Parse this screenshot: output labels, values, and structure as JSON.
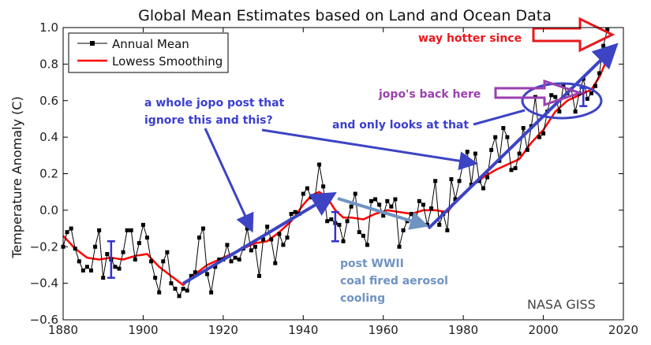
{
  "chart_data": {
    "type": "line",
    "title": "Global Mean Estimates based on Land and Ocean Data",
    "xlabel": "",
    "ylabel": "Temperature Anomaly (C)",
    "xlim": [
      1880,
      2020
    ],
    "ylim": [
      -0.6,
      1.0
    ],
    "xticks": [
      1880,
      1900,
      1920,
      1940,
      1960,
      1980,
      2000,
      2020
    ],
    "yticks": [
      -0.6,
      -0.4,
      -0.2,
      0.0,
      0.2,
      0.4,
      0.6,
      0.8,
      1.0
    ],
    "xtick_labels": [
      "1880",
      "1900",
      "1920",
      "1940",
      "1960",
      "1980",
      "2000",
      "2020"
    ],
    "ytick_labels": [
      "−0.6",
      "−0.4",
      "−0.2",
      "0.0",
      "0.2",
      "0.4",
      "0.6",
      "0.8",
      "1.0"
    ],
    "legend_position": "top-left",
    "grid": false,
    "series": [
      {
        "name": "Annual Mean",
        "color": "#000000",
        "marker": "square",
        "x": [
          1880,
          1881,
          1882,
          1883,
          1884,
          1885,
          1886,
          1887,
          1888,
          1889,
          1890,
          1891,
          1892,
          1893,
          1894,
          1895,
          1896,
          1897,
          1898,
          1899,
          1900,
          1901,
          1902,
          1903,
          1904,
          1905,
          1906,
          1907,
          1908,
          1909,
          1910,
          1911,
          1912,
          1913,
          1914,
          1915,
          1916,
          1917,
          1918,
          1919,
          1920,
          1921,
          1922,
          1923,
          1924,
          1925,
          1926,
          1927,
          1928,
          1929,
          1930,
          1931,
          1932,
          1933,
          1934,
          1935,
          1936,
          1937,
          1938,
          1939,
          1940,
          1941,
          1942,
          1943,
          1944,
          1945,
          1946,
          1947,
          1948,
          1949,
          1950,
          1951,
          1952,
          1953,
          1954,
          1955,
          1956,
          1957,
          1958,
          1959,
          1960,
          1961,
          1962,
          1963,
          1964,
          1965,
          1966,
          1967,
          1968,
          1969,
          1970,
          1971,
          1972,
          1973,
          1974,
          1975,
          1976,
          1977,
          1978,
          1979,
          1980,
          1981,
          1982,
          1983,
          1984,
          1985,
          1986,
          1987,
          1988,
          1989,
          1990,
          1991,
          1992,
          1993,
          1994,
          1995,
          1996,
          1997,
          1998,
          1999,
          2000,
          2001,
          2002,
          2003,
          2004,
          2005,
          2006,
          2007,
          2008,
          2009,
          2010,
          2011,
          2012,
          2013,
          2014,
          2015,
          2016
        ],
        "values": [
          -0.2,
          -0.12,
          -0.1,
          -0.21,
          -0.28,
          -0.33,
          -0.31,
          -0.33,
          -0.2,
          -0.11,
          -0.37,
          -0.24,
          -0.27,
          -0.31,
          -0.32,
          -0.23,
          -0.11,
          -0.11,
          -0.27,
          -0.18,
          -0.08,
          -0.15,
          -0.28,
          -0.37,
          -0.45,
          -0.28,
          -0.23,
          -0.4,
          -0.43,
          -0.47,
          -0.43,
          -0.44,
          -0.36,
          -0.34,
          -0.15,
          -0.1,
          -0.35,
          -0.45,
          -0.31,
          -0.27,
          -0.27,
          -0.19,
          -0.28,
          -0.26,
          -0.27,
          -0.21,
          -0.1,
          -0.22,
          -0.2,
          -0.36,
          -0.16,
          -0.09,
          -0.16,
          -0.29,
          -0.13,
          -0.19,
          -0.15,
          -0.02,
          -0.01,
          -0.02,
          0.09,
          0.12,
          0.07,
          0.08,
          0.25,
          0.13,
          -0.06,
          -0.05,
          -0.07,
          -0.08,
          -0.17,
          -0.06,
          0.02,
          0.09,
          -0.12,
          -0.14,
          -0.19,
          0.05,
          0.06,
          0.03,
          -0.03,
          0.05,
          0.02,
          0.06,
          -0.2,
          -0.11,
          -0.06,
          -0.02,
          -0.08,
          0.05,
          0.03,
          -0.08,
          0.01,
          0.16,
          -0.08,
          -0.02,
          -0.11,
          0.17,
          0.06,
          0.16,
          0.26,
          0.32,
          0.14,
          0.31,
          0.16,
          0.12,
          0.18,
          0.33,
          0.4,
          0.27,
          0.45,
          0.4,
          0.22,
          0.23,
          0.31,
          0.45,
          0.33,
          0.46,
          0.62,
          0.4,
          0.42,
          0.54,
          0.63,
          0.62,
          0.54,
          0.68,
          0.64,
          0.66,
          0.54,
          0.64,
          0.72,
          0.61,
          0.64,
          0.68,
          0.75,
          0.9,
          0.99
        ]
      },
      {
        "name": "Lowess Smoothing",
        "color": "#ff0000",
        "x": [
          1880,
          1883,
          1886,
          1889,
          1892,
          1895,
          1898,
          1901,
          1904,
          1907,
          1910,
          1913,
          1916,
          1919,
          1922,
          1925,
          1928,
          1931,
          1934,
          1937,
          1940,
          1942,
          1944,
          1946,
          1948,
          1950,
          1952,
          1955,
          1958,
          1961,
          1964,
          1967,
          1970,
          1973,
          1976,
          1979,
          1982,
          1985,
          1988,
          1991,
          1994,
          1997,
          2000,
          2003,
          2006,
          2009,
          2012,
          2014,
          2016
        ],
        "values": [
          -0.14,
          -0.21,
          -0.26,
          -0.27,
          -0.26,
          -0.27,
          -0.25,
          -0.24,
          -0.31,
          -0.36,
          -0.41,
          -0.35,
          -0.3,
          -0.27,
          -0.24,
          -0.21,
          -0.18,
          -0.17,
          -0.12,
          -0.06,
          0.03,
          0.08,
          0.1,
          0.07,
          0.0,
          -0.04,
          -0.04,
          -0.05,
          -0.02,
          0.0,
          -0.01,
          -0.02,
          0.0,
          0.0,
          -0.01,
          0.07,
          0.13,
          0.18,
          0.22,
          0.25,
          0.28,
          0.37,
          0.44,
          0.54,
          0.6,
          0.63,
          0.66,
          0.73,
          0.83
        ]
      }
    ],
    "error_bars": [
      {
        "x": 1892,
        "y": -0.27,
        "low": -0.37,
        "high": -0.17,
        "color": "#3333cc"
      },
      {
        "x": 1948,
        "y": -0.09,
        "low": -0.17,
        "high": -0.01,
        "color": "#3333cc"
      },
      {
        "x": 2010,
        "y": 0.62,
        "low": 0.57,
        "high": 0.67,
        "color": "#3333cc"
      }
    ],
    "watermark": "NASA GISS"
  },
  "annotations": {
    "left_note": [
      "a whole jopo post that",
      "ignore this and this?"
    ],
    "middle_note": "and only looks at that",
    "jopo_note": "jopo's back here",
    "hot_note": "way hotter since",
    "postwar_note": [
      "post WWII",
      "coal fired aerosol",
      "cooling"
    ],
    "colors": {
      "blue_arrow": "#3c44c4",
      "steel_arrow": "#6f93c2",
      "purple": "#9b3fb0",
      "red": "#e8191c",
      "blue_text": "#3b3fd0"
    }
  }
}
